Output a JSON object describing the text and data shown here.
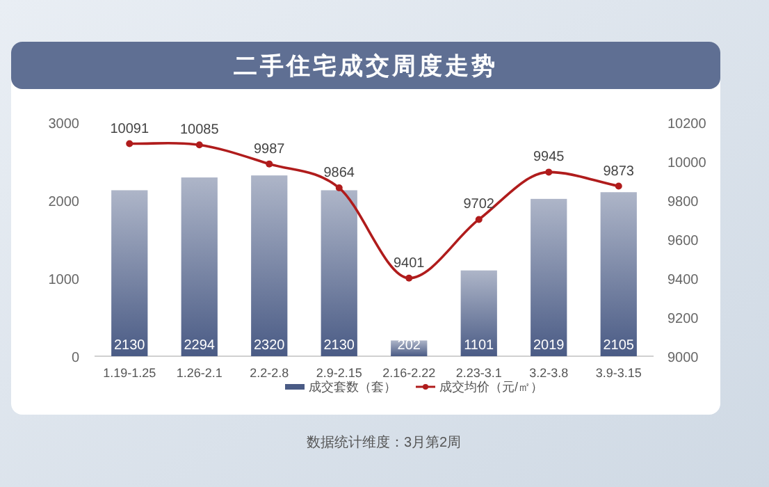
{
  "chart_data": {
    "type": "bar",
    "title": "二手住宅成交周度走势",
    "categories": [
      "1.19-1.25",
      "1.26-2.1",
      "2.2-2.8",
      "2.9-2.15",
      "2.16-2.22",
      "2.23-3.1",
      "3.2-3.8",
      "3.9-3.15"
    ],
    "series": [
      {
        "name": "成交套数（套）",
        "color": "#4a5b85",
        "values": [
          2130,
          2294,
          2320,
          2130,
          202,
          1101,
          2019,
          2105
        ]
      },
      {
        "name": "成交均价（元/㎡）",
        "type": "line",
        "axis": "y2",
        "color": "#b01c1c",
        "marker": "circle",
        "values": [
          10091,
          10085,
          9987,
          9864,
          9401,
          9702,
          9945,
          9873
        ]
      }
    ],
    "ylim": [
      0,
      3000
    ],
    "yticks": [
      0,
      1000,
      2000,
      3000
    ],
    "y2lim": [
      9000,
      10200
    ],
    "y2ticks": [
      9000,
      9200,
      9400,
      9600,
      9800,
      10000,
      10200
    ],
    "data_labels": true,
    "legend": "bottom",
    "grid": false,
    "annotations": [
      "数据统计维度：3月第2周"
    ]
  }
}
